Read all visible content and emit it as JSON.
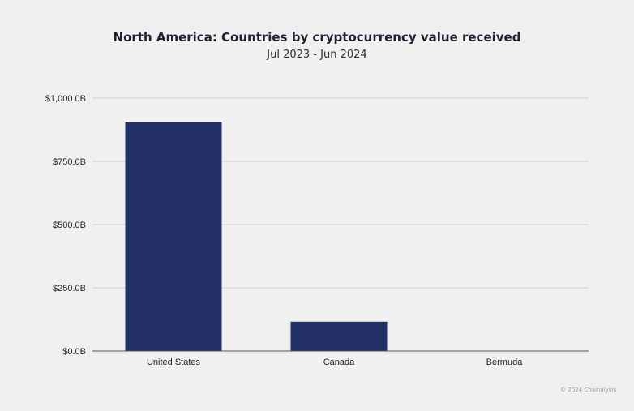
{
  "chart_data": {
    "type": "bar",
    "title": "North America: Countries by cryptocurrency value received",
    "subtitle": "Jul 2023 - Jun 2024",
    "categories": [
      "United States",
      "Canada",
      "Bermuda"
    ],
    "values": [
      905,
      116,
      0.3
    ],
    "ylim": [
      0,
      1000
    ],
    "yticks": [
      0,
      250,
      500,
      750,
      1000
    ],
    "ytick_labels": [
      "$0.0B",
      "$250.0B",
      "$500.0B",
      "$750.0B",
      "$1,000.0B"
    ],
    "xlabel": "",
    "ylabel": "",
    "grid": true,
    "bar_color": "#233066"
  },
  "credit": "© 2024 Chainalysis"
}
